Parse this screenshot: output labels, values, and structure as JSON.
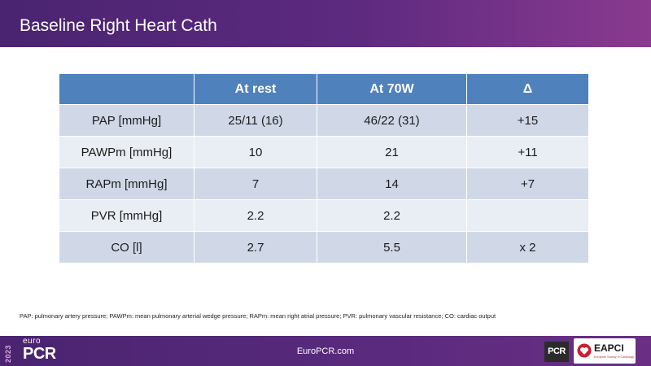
{
  "slide": {
    "title": "Baseline Right Heart Cath"
  },
  "table": {
    "headers": [
      "",
      "At rest",
      "At 70W",
      "Δ"
    ],
    "rows": [
      [
        "PAP [mmHg]",
        "25/11 (16)",
        "46/22 (31)",
        "+15"
      ],
      [
        "PAWPm [mmHg]",
        "10",
        "21",
        "+11"
      ],
      [
        "RAPm [mmHg]",
        "7",
        "14",
        "+7"
      ],
      [
        "PVR [mmHg]",
        "2.2",
        "2.2",
        ""
      ],
      [
        "CO [l]",
        "2.7",
        "5.5",
        "x 2"
      ]
    ]
  },
  "footnote": "PAP: pulmonary artery pressure; PAWPm: mean pulmonary arterial wedge pressure; RAPm: mean right atrial pressure; PVR:  pulmonary vascular resistance; CO: cardiac output",
  "footer": {
    "year": "2023",
    "brand_top": "euro",
    "brand_main": "PCR",
    "website": "EuroPCR.com",
    "pcr_logo_text": "PCR",
    "eapci_name": "EAPCI",
    "eapci_sub": "European Society of Cardiology"
  },
  "colors": {
    "header_gradient_start": "#4a2470",
    "header_gradient_end": "#8a3a8f",
    "table_header": "#4f81bd",
    "row_odd": "#d0d8e8",
    "row_even": "#e9edf4"
  }
}
